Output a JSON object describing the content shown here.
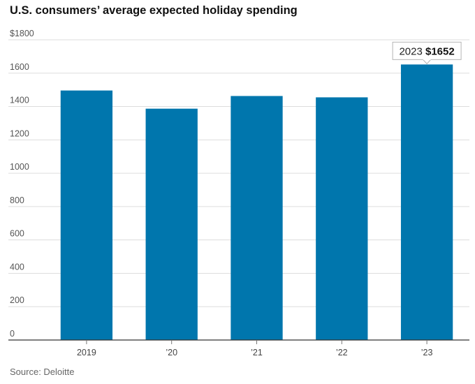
{
  "chart_data": {
    "type": "bar",
    "title": "U.S. consumers’ average expected holiday spending",
    "xlabel": "",
    "ylabel": "",
    "categories": [
      "2019",
      "’20",
      "’21",
      "’22",
      "’23"
    ],
    "values": [
      1496,
      1387,
      1463,
      1455,
      1652
    ],
    "y_tick_labels": [
      "$1800",
      "1600",
      "1400",
      "1200",
      "1000",
      "800",
      "600",
      "400",
      "200",
      "0"
    ],
    "y_tick_values": [
      1800,
      1600,
      1400,
      1200,
      1000,
      800,
      600,
      400,
      200,
      0
    ],
    "ylim": [
      0,
      1800
    ],
    "grid": true,
    "bar_color": "#0076ad",
    "annotation": {
      "category_index": 4,
      "year": "2023",
      "value_text": "$1652"
    },
    "source": "Source: Deloitte"
  }
}
